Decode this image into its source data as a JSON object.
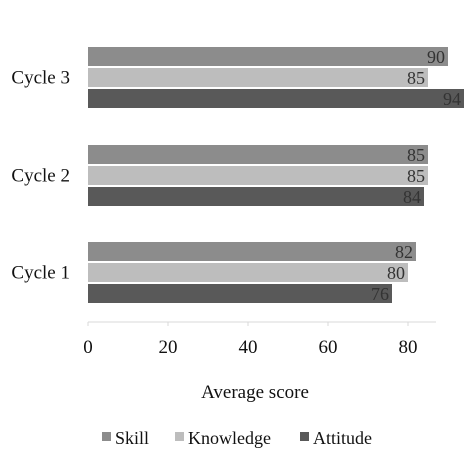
{
  "chart_data": {
    "type": "bar",
    "orientation": "horizontal",
    "categories": [
      "Cycle 1",
      "Cycle 2",
      "Cycle 3"
    ],
    "series": [
      {
        "name": "Skill",
        "values": [
          82,
          85,
          90
        ],
        "color": "#8c8c8c"
      },
      {
        "name": "Knowledge",
        "values": [
          80,
          85,
          85
        ],
        "color": "#bdbdbd"
      },
      {
        "name": "Attitude",
        "values": [
          76,
          84,
          94
        ],
        "color": "#595959"
      }
    ],
    "xlabel": "Average score",
    "ylabel": "",
    "xlim": [
      0,
      94
    ],
    "xticks": [
      0,
      20,
      40,
      60,
      80
    ],
    "grid": false,
    "legend_position": "bottom",
    "data_labels": true
  }
}
